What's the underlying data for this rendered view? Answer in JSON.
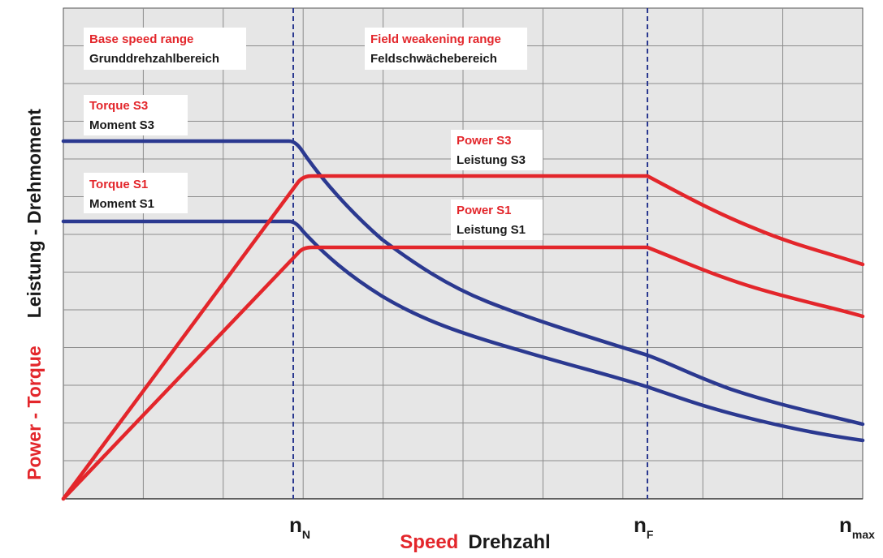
{
  "ranges": [
    {
      "en": "Base speed range",
      "de": "Grunddrehzahlbereich"
    },
    {
      "en": "Field weakening range",
      "de": "Feldschwächebereich"
    }
  ],
  "curves": [
    {
      "en": "Torque S3",
      "de": "Moment S3"
    },
    {
      "en": "Torque S1",
      "de": "Moment S1"
    },
    {
      "en": "Power S3",
      "de": "Leistung S3"
    },
    {
      "en": "Power S1",
      "de": "Leistung S1"
    }
  ],
  "y_axis": {
    "en": "Power - Torque",
    "de": "Leistung - Drehmoment"
  },
  "x_axis": {
    "en": "Speed",
    "de": "Drehzahl"
  },
  "speed_marks": [
    {
      "symbol": "n",
      "sub": "N"
    },
    {
      "symbol": "n",
      "sub": "F"
    },
    {
      "symbol": "n",
      "sub": "max"
    }
  ]
}
